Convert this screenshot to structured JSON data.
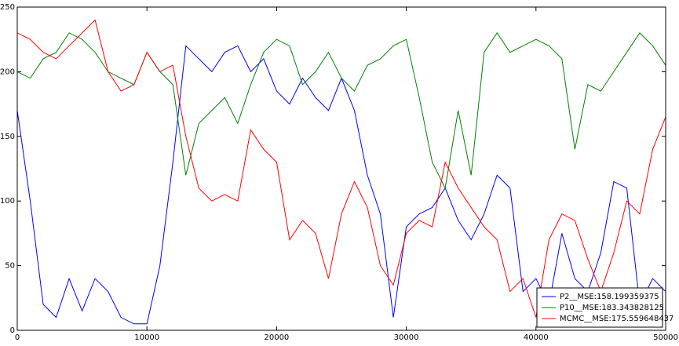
{
  "chart_data": {
    "type": "line",
    "x": [
      0,
      1000,
      2000,
      3000,
      4000,
      5000,
      6000,
      7000,
      8000,
      9000,
      10000,
      11000,
      12000,
      13000,
      14000,
      15000,
      16000,
      17000,
      18000,
      19000,
      20000,
      21000,
      22000,
      23000,
      24000,
      25000,
      26000,
      27000,
      28000,
      29000,
      30000,
      31000,
      32000,
      33000,
      34000,
      35000,
      36000,
      37000,
      38000,
      39000,
      40000,
      41000,
      42000,
      43000,
      44000,
      45000,
      46000,
      47000,
      48000,
      49000,
      50000
    ],
    "series": [
      {
        "name": "P2__MSE:158.199359375",
        "color": "#0000ff",
        "values": [
          170,
          100,
          20,
          10,
          40,
          15,
          40,
          30,
          10,
          5,
          5,
          50,
          130,
          220,
          210,
          200,
          215,
          220,
          200,
          210,
          185,
          175,
          195,
          180,
          170,
          195,
          170,
          120,
          90,
          10,
          80,
          90,
          95,
          110,
          85,
          70,
          90,
          120,
          110,
          30,
          40,
          20,
          75,
          40,
          30,
          60,
          115,
          110,
          20,
          40,
          30
        ]
      },
      {
        "name": "P10__MSE:183.343828125",
        "color": "#008000",
        "values": [
          200,
          195,
          210,
          215,
          230,
          225,
          215,
          200,
          195,
          190,
          215,
          200,
          190,
          120,
          160,
          170,
          180,
          160,
          190,
          215,
          225,
          220,
          190,
          200,
          215,
          195,
          185,
          205,
          210,
          220,
          225,
          180,
          130,
          110,
          170,
          120,
          215,
          230,
          215,
          220,
          225,
          220,
          210,
          140,
          190,
          185,
          200,
          215,
          230,
          220,
          205
        ]
      },
      {
        "name": "MCMC__MSE:175.559648437",
        "color": "#ff0000",
        "values": [
          230,
          225,
          215,
          210,
          220,
          230,
          240,
          200,
          185,
          190,
          215,
          200,
          205,
          150,
          110,
          100,
          105,
          100,
          155,
          140,
          130,
          70,
          85,
          75,
          40,
          90,
          115,
          95,
          50,
          35,
          75,
          85,
          80,
          130,
          110,
          95,
          80,
          70,
          30,
          40,
          10,
          70,
          90,
          85,
          55,
          30,
          60,
          100,
          90,
          140,
          165
        ]
      }
    ],
    "xlim": [
      0,
      50000
    ],
    "xticks": [
      0,
      10000,
      20000,
      30000,
      40000,
      50000
    ],
    "ylim": [
      0,
      250
    ],
    "yticks": [
      0,
      50,
      100,
      150,
      200,
      250
    ],
    "legend": "lower right",
    "grid": false
  }
}
